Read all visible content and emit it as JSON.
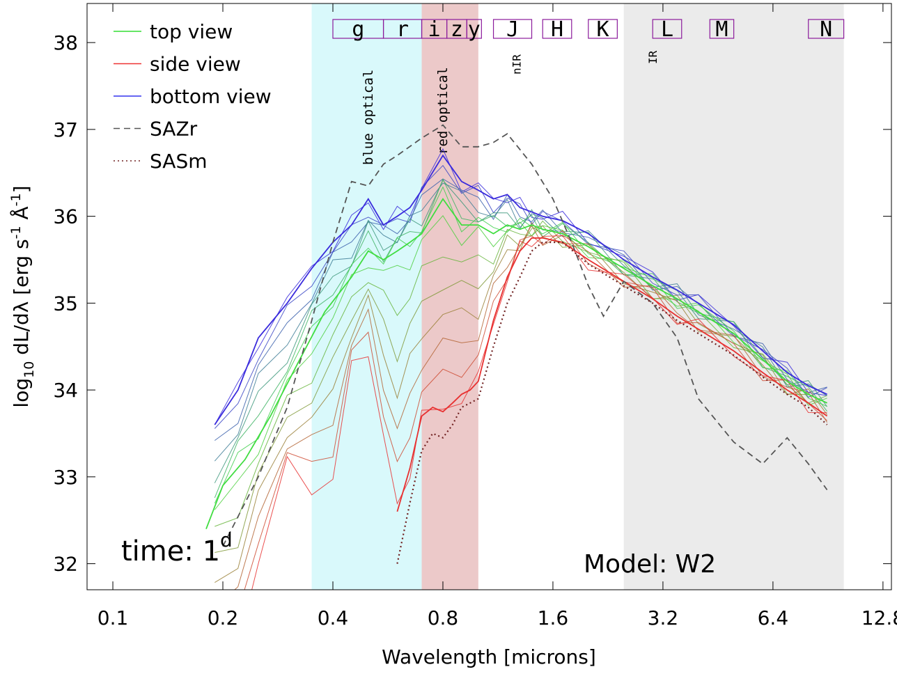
{
  "chart_data": {
    "type": "line",
    "title": "",
    "xlabel": "Wavelength [microns]",
    "ylabel": "log10 dL/dλ [erg s-1 Å-1]",
    "ylabel_parts": {
      "pre": "log",
      "sub": "10",
      "mid": " dL/dλ [erg s",
      "sup1": "-1",
      "mid2": " Å",
      "sup2": "-1",
      "post": "]"
    },
    "xscale": "log2",
    "xlim": [
      0.085,
      13.5
    ],
    "ylim": [
      31.7,
      38.45
    ],
    "xticks": [
      0.1,
      0.2,
      0.4,
      0.8,
      1.6,
      3.2,
      6.4,
      12.8
    ],
    "xtick_labels": [
      "0.1",
      "0.2",
      "0.4",
      "0.8",
      "1.6",
      "3.2",
      "6.4",
      "12.8"
    ],
    "yticks": [
      32,
      33,
      34,
      35,
      36,
      37,
      38
    ],
    "ytick_labels": [
      "32",
      "33",
      "34",
      "35",
      "36",
      "37",
      "38"
    ],
    "time_label": "time: 1",
    "time_sup": "d",
    "model_label": "Model: W2",
    "regions": [
      {
        "name": "blue optical",
        "x0": 0.35,
        "x1": 0.7,
        "color": "#d9f9fb"
      },
      {
        "name": "red optical",
        "x0": 0.7,
        "x1": 1.0,
        "color": "#ecc9c9"
      },
      {
        "name": "nIR",
        "x0": 1.0,
        "x1": 2.5,
        "color": "#ffffff"
      },
      {
        "name": "IR",
        "x0": 2.5,
        "x1": 10.0,
        "color": "#ebebeb"
      }
    ],
    "filters": [
      {
        "label": "g",
        "x0": 0.4,
        "x1": 0.55
      },
      {
        "label": "r",
        "x0": 0.55,
        "x1": 0.7
      },
      {
        "label": "i",
        "x0": 0.7,
        "x1": 0.82
      },
      {
        "label": "z",
        "x0": 0.82,
        "x1": 0.93
      },
      {
        "label": "y",
        "x0": 0.93,
        "x1": 1.02
      },
      {
        "label": "J",
        "x0": 1.1,
        "x1": 1.4
      },
      {
        "label": "H",
        "x0": 1.5,
        "x1": 1.8
      },
      {
        "label": "K",
        "x0": 2.0,
        "x1": 2.4
      },
      {
        "label": "L",
        "x0": 3.0,
        "x1": 3.6
      },
      {
        "label": "M",
        "x0": 4.3,
        "x1": 5.0
      },
      {
        "label": "N",
        "x0": 8.0,
        "x1": 10.0
      }
    ],
    "legend": [
      {
        "name": "top view",
        "color": "#33dd33",
        "style": "solid"
      },
      {
        "name": "side view",
        "color": "#ee3333",
        "style": "solid"
      },
      {
        "name": "bottom view",
        "color": "#3333ee",
        "style": "solid"
      },
      {
        "name": "SAZr",
        "color": "#555555",
        "style": "dashed"
      },
      {
        "name": "SASm",
        "color": "#702020",
        "style": "dotted"
      }
    ],
    "series": [
      {
        "name": "bottom view",
        "color": "#3a2bdd",
        "x": [
          0.19,
          0.22,
          0.25,
          0.3,
          0.35,
          0.4,
          0.45,
          0.5,
          0.55,
          0.6,
          0.65,
          0.7,
          0.8,
          0.9,
          1.0,
          1.1,
          1.2,
          1.3,
          1.4,
          1.5,
          1.7,
          2.0,
          2.5,
          3.0,
          3.5,
          4.0,
          5.0,
          6.0,
          7.0,
          8.0,
          9.0
        ],
        "y": [
          33.6,
          34.0,
          34.6,
          35.0,
          35.4,
          35.7,
          35.9,
          36.2,
          35.9,
          36.0,
          36.1,
          36.3,
          36.7,
          36.4,
          36.3,
          36.2,
          36.25,
          36.1,
          36.05,
          36.0,
          35.95,
          35.8,
          35.5,
          35.3,
          35.15,
          35.0,
          34.75,
          34.45,
          34.2,
          34.05,
          33.95
        ]
      },
      {
        "name": "top view",
        "color": "#40dd40",
        "x": [
          0.18,
          0.2,
          0.23,
          0.27,
          0.32,
          0.38,
          0.45,
          0.5,
          0.55,
          0.6,
          0.65,
          0.7,
          0.8,
          0.9,
          1.0,
          1.1,
          1.2,
          1.3,
          1.4,
          1.5,
          1.7,
          2.0,
          2.5,
          3.0,
          3.5,
          4.0,
          5.0,
          6.0,
          7.0,
          8.0,
          9.0
        ],
        "y": [
          32.4,
          32.9,
          33.2,
          33.7,
          34.3,
          34.9,
          35.3,
          35.6,
          35.5,
          35.6,
          35.7,
          35.8,
          36.2,
          35.9,
          35.9,
          35.8,
          35.9,
          35.85,
          35.9,
          35.85,
          35.8,
          35.65,
          35.4,
          35.2,
          35.05,
          34.9,
          34.65,
          34.35,
          34.1,
          33.95,
          33.85
        ]
      },
      {
        "name": "side view",
        "color": "#e83030",
        "x": [
          0.6,
          0.65,
          0.7,
          0.75,
          0.8,
          0.85,
          0.9,
          0.95,
          1.0,
          1.1,
          1.2,
          1.3,
          1.4,
          1.5,
          1.7,
          2.0,
          2.5,
          3.0,
          3.5,
          4.0,
          5.0,
          6.0,
          7.0,
          8.0,
          9.0
        ],
        "y": [
          32.6,
          33.1,
          33.7,
          33.8,
          33.75,
          33.85,
          33.95,
          34.0,
          34.1,
          34.8,
          35.3,
          35.6,
          35.75,
          35.75,
          35.7,
          35.5,
          35.25,
          35.05,
          34.85,
          34.7,
          34.45,
          34.2,
          34.0,
          33.85,
          33.7
        ]
      },
      {
        "name": "SAZr",
        "color": "#555555",
        "x": [
          0.2,
          0.25,
          0.3,
          0.35,
          0.4,
          0.45,
          0.5,
          0.55,
          0.6,
          0.7,
          0.8,
          0.9,
          1.0,
          1.1,
          1.2,
          1.4,
          1.6,
          1.8,
          2.0,
          2.2,
          2.5,
          3.0,
          3.5,
          4.0,
          5.0,
          6.0,
          7.0,
          8.0,
          9.0
        ],
        "y": [
          32.2,
          33.0,
          33.8,
          34.8,
          35.7,
          36.4,
          36.35,
          36.6,
          36.7,
          36.9,
          37.05,
          36.8,
          36.8,
          36.85,
          36.95,
          36.6,
          36.2,
          35.7,
          35.2,
          34.85,
          35.25,
          35.0,
          34.6,
          33.9,
          33.4,
          33.15,
          33.45,
          33.15,
          32.85
        ]
      },
      {
        "name": "SASm",
        "color": "#702020",
        "x": [
          0.6,
          0.65,
          0.7,
          0.75,
          0.8,
          0.85,
          0.9,
          0.95,
          1.0,
          1.1,
          1.2,
          1.3,
          1.4,
          1.5,
          1.7,
          2.0,
          2.5,
          3.0,
          3.5,
          4.0,
          5.0,
          6.0,
          7.0,
          8.0,
          9.0
        ],
        "y": [
          32.0,
          32.7,
          33.3,
          33.5,
          33.45,
          33.6,
          33.8,
          33.85,
          33.9,
          34.5,
          35.0,
          35.3,
          35.6,
          35.7,
          35.7,
          35.45,
          35.2,
          35.0,
          34.8,
          34.65,
          34.4,
          34.15,
          33.95,
          33.8,
          33.6
        ]
      }
    ]
  }
}
